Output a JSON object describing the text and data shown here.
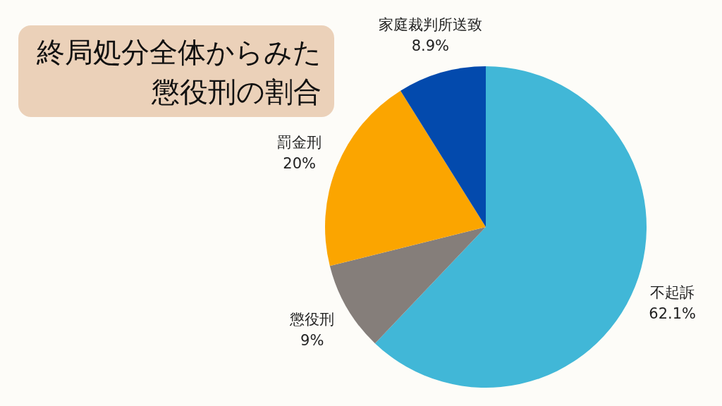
{
  "chart_data": {
    "type": "pie",
    "title": "終局処分全体からみた懲役刑の割合",
    "categories": [
      "不起訴",
      "懲役刑",
      "罰金刑",
      "家庭裁判所送致"
    ],
    "values": [
      62.1,
      9,
      20,
      8.9
    ],
    "colors": [
      "#41b7d7",
      "#857e7a",
      "#fba500",
      "#034aad"
    ],
    "value_labels": [
      "62.1%",
      "9%",
      "20%",
      "8.9%"
    ],
    "legend": false
  }
}
